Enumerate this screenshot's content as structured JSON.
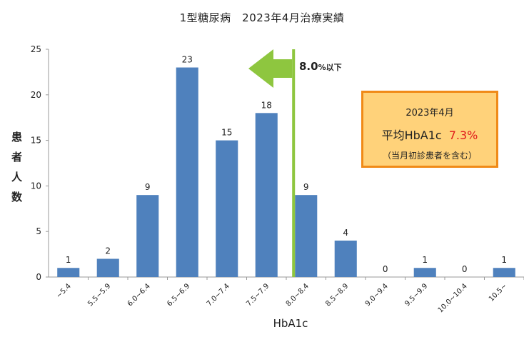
{
  "title": "1型糖尿病　2023年4月治療実績",
  "chart_data": {
    "type": "bar",
    "categories": [
      "~5.4",
      "5.5~5.9",
      "6.0~6.4",
      "6.5~6.9",
      "7.0~7.4",
      "7.5~7.9",
      "8.0~8.4",
      "8.5~8.9",
      "9.0~9.4",
      "9.5~9.9",
      "10.0~10.4",
      "10.5~"
    ],
    "values": [
      1,
      2,
      9,
      23,
      15,
      18,
      9,
      4,
      0,
      1,
      0,
      1
    ],
    "xlabel": "HbA1c",
    "ylabel_chars": [
      "患",
      "者",
      "人",
      "数"
    ],
    "ylim": [
      0,
      25
    ],
    "yticks": [
      0,
      5,
      10,
      15,
      20,
      25
    ],
    "bar_color": "#4f81bd",
    "grid": false,
    "threshold": {
      "category": "8.0~8.4",
      "label_value": "8.0",
      "label_suffix": "%以下",
      "line_color": "#8ec63f",
      "arrow_direction": "left"
    }
  },
  "info_box": {
    "period": "2023年4月",
    "avg_label": "平均HbA1c",
    "avg_value": "7.3%",
    "note": "（当月初診患者を含む）",
    "fill_color": "#ffd27a",
    "border_color": "#f08a18",
    "value_color": "#e01b1b"
  }
}
